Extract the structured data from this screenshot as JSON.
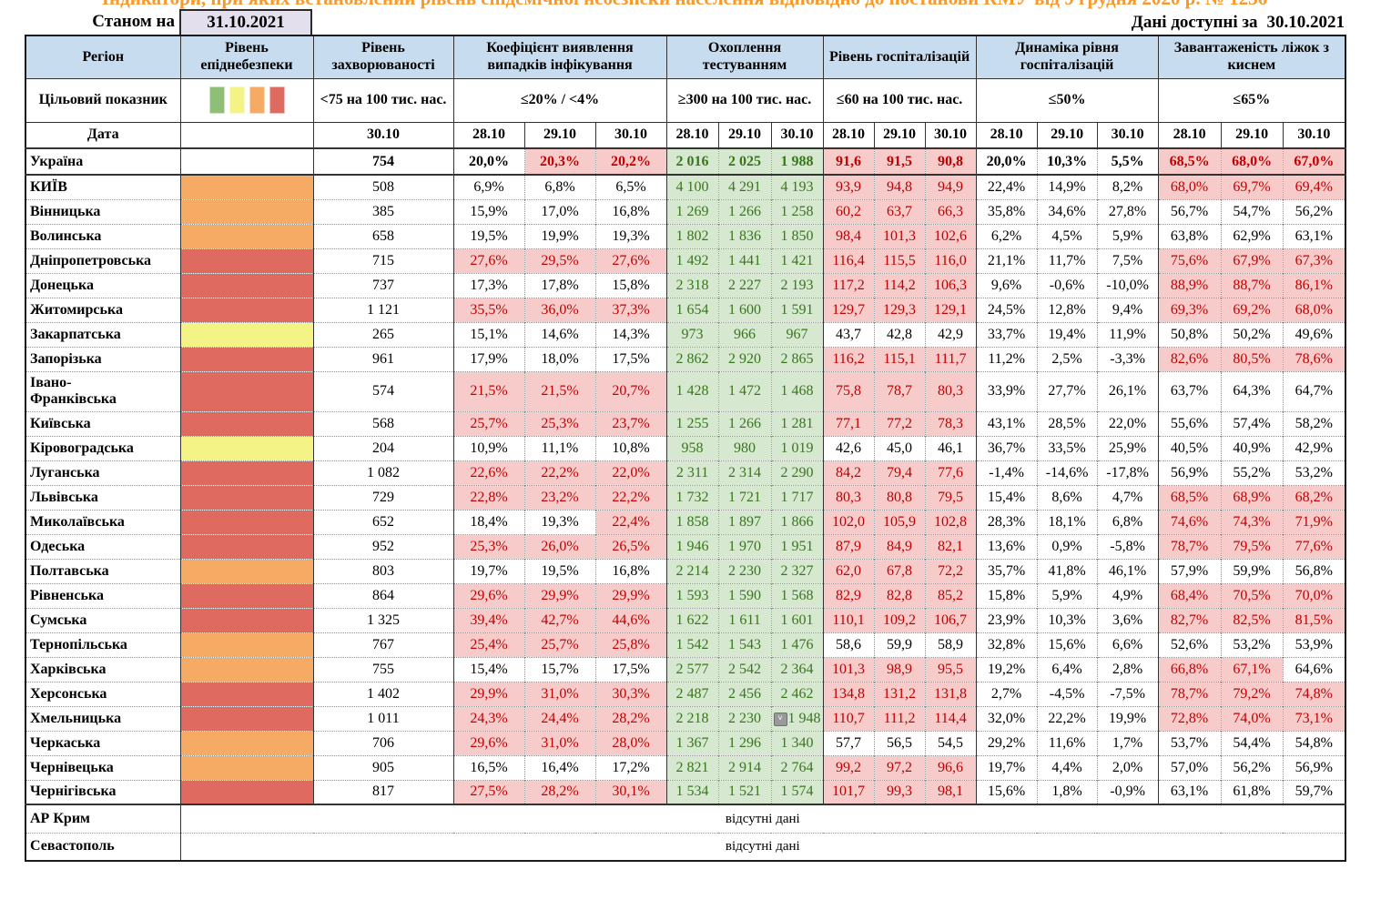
{
  "page": {
    "title_clipped": "Індикатори, при яких встановлений рівень епідемічної небезпеки населення відповідно до постанови КМУ від 9 грудня 2020 р. № 1236",
    "as_of_label": "Станом на",
    "as_of_date": "31.10.2021",
    "available_label": "Дані доступні за",
    "available_date": "30.10.2021"
  },
  "colors": {
    "header_bg": "#C7DDEF",
    "date_box_bg": "#E4DFEC",
    "title_orange": "#F8992B",
    "danger_green": "#8FBE77",
    "danger_yellow": "#F4F385",
    "danger_orange": "#F5AB63",
    "danger_red": "#DF6A60",
    "exceed_bg": "#F8CBCB",
    "exceed_text": "#C00000",
    "testing_bg": "#D7E8D0",
    "testing_text": "#38761D"
  },
  "header": {
    "region": "Регіон",
    "danger": "Рівень епіднебезпеки",
    "target_label": "Цільовий показник",
    "date_label": "Дата",
    "incidence_date": "30.10",
    "dates": [
      "28.10",
      "29.10",
      "30.10"
    ],
    "groups": [
      {
        "title": "Рівень захворюваності",
        "target": "<75 на 100 тис. нас."
      },
      {
        "title": "Коефіцієнт виявлення випадків інфікування",
        "target": "≤20% / <4%"
      },
      {
        "title": "Охоплення тестуванням",
        "target": "≥300 на 100 тис. нас."
      },
      {
        "title": "Рівень госпіталізацій",
        "target": "≤60 на 100 тис. нас."
      },
      {
        "title": "Динаміка рівня госпіталізацій",
        "target": "≤50%"
      },
      {
        "title": "Завантаженість ліжок з киснем",
        "target": "≤65%"
      }
    ],
    "legend_order": [
      "green",
      "yellow",
      "orange",
      "red"
    ]
  },
  "no_data_text": "відсутні дані",
  "no_data_rows": [
    "АР Крим",
    "Севастополь"
  ],
  "rows": [
    {
      "name": "Україна",
      "danger": null,
      "bold": true,
      "inc": "754",
      "detect": [
        "20,0%",
        "20,3%",
        "20,2%"
      ],
      "dflags": [
        0,
        1,
        1
      ],
      "test": [
        "2 016",
        "2 025",
        "1 988"
      ],
      "hosp": [
        "91,6",
        "91,5",
        "90,8"
      ],
      "hflags": [
        1,
        1,
        1
      ],
      "dyn": [
        "20,0%",
        "10,3%",
        "5,5%"
      ],
      "beds": [
        "68,5%",
        "68,0%",
        "67,0%"
      ],
      "bflags": [
        1,
        1,
        1
      ]
    },
    {
      "name": "КИЇВ",
      "danger": "orange",
      "inc": "508",
      "detect": [
        "6,9%",
        "6,8%",
        "6,5%"
      ],
      "dflags": [
        0,
        0,
        0
      ],
      "test": [
        "4 100",
        "4 291",
        "4 193"
      ],
      "hosp": [
        "93,9",
        "94,8",
        "94,9"
      ],
      "hflags": [
        1,
        1,
        1
      ],
      "dyn": [
        "22,4%",
        "14,9%",
        "8,2%"
      ],
      "beds": [
        "68,0%",
        "69,7%",
        "69,4%"
      ],
      "bflags": [
        1,
        1,
        1
      ]
    },
    {
      "name": "Вінницька",
      "danger": "orange",
      "inc": "385",
      "detect": [
        "15,9%",
        "17,0%",
        "16,8%"
      ],
      "dflags": [
        0,
        0,
        0
      ],
      "test": [
        "1 269",
        "1 266",
        "1 258"
      ],
      "hosp": [
        "60,2",
        "63,7",
        "66,3"
      ],
      "hflags": [
        1,
        1,
        1
      ],
      "dyn": [
        "35,8%",
        "34,6%",
        "27,8%"
      ],
      "beds": [
        "56,7%",
        "54,7%",
        "56,2%"
      ],
      "bflags": [
        0,
        0,
        0
      ]
    },
    {
      "name": "Волинська",
      "danger": "orange",
      "inc": "658",
      "detect": [
        "19,5%",
        "19,9%",
        "19,3%"
      ],
      "dflags": [
        0,
        0,
        0
      ],
      "test": [
        "1 802",
        "1 836",
        "1 850"
      ],
      "hosp": [
        "98,4",
        "101,3",
        "102,6"
      ],
      "hflags": [
        1,
        1,
        1
      ],
      "dyn": [
        "6,2%",
        "4,5%",
        "5,9%"
      ],
      "beds": [
        "63,8%",
        "62,9%",
        "63,1%"
      ],
      "bflags": [
        0,
        0,
        0
      ]
    },
    {
      "name": "Дніпропетровська",
      "danger": "red",
      "inc": "715",
      "detect": [
        "27,6%",
        "29,5%",
        "27,6%"
      ],
      "dflags": [
        1,
        1,
        1
      ],
      "test": [
        "1 492",
        "1 441",
        "1 421"
      ],
      "hosp": [
        "116,4",
        "115,5",
        "116,0"
      ],
      "hflags": [
        1,
        1,
        1
      ],
      "dyn": [
        "21,1%",
        "11,7%",
        "7,5%"
      ],
      "beds": [
        "75,6%",
        "67,9%",
        "67,3%"
      ],
      "bflags": [
        1,
        1,
        1
      ]
    },
    {
      "name": "Донецька",
      "danger": "red",
      "inc": "737",
      "detect": [
        "17,3%",
        "17,8%",
        "15,8%"
      ],
      "dflags": [
        0,
        0,
        0
      ],
      "test": [
        "2 318",
        "2 227",
        "2 193"
      ],
      "hosp": [
        "117,2",
        "114,2",
        "106,3"
      ],
      "hflags": [
        1,
        1,
        1
      ],
      "dyn": [
        "9,6%",
        "-0,6%",
        "-10,0%"
      ],
      "beds": [
        "88,9%",
        "88,7%",
        "86,1%"
      ],
      "bflags": [
        1,
        1,
        1
      ]
    },
    {
      "name": "Житомирська",
      "danger": "red",
      "inc": "1 121",
      "detect": [
        "35,5%",
        "36,0%",
        "37,3%"
      ],
      "dflags": [
        1,
        1,
        1
      ],
      "test": [
        "1 654",
        "1 600",
        "1 591"
      ],
      "hosp": [
        "129,7",
        "129,3",
        "129,1"
      ],
      "hflags": [
        1,
        1,
        1
      ],
      "dyn": [
        "24,5%",
        "12,8%",
        "9,4%"
      ],
      "beds": [
        "69,3%",
        "69,2%",
        "68,0%"
      ],
      "bflags": [
        1,
        1,
        1
      ]
    },
    {
      "name": "Закарпатська",
      "danger": "yellow",
      "inc": "265",
      "detect": [
        "15,1%",
        "14,6%",
        "14,3%"
      ],
      "dflags": [
        0,
        0,
        0
      ],
      "test": [
        "973",
        "966",
        "967"
      ],
      "hosp": [
        "43,7",
        "42,8",
        "42,9"
      ],
      "hflags": [
        0,
        0,
        0
      ],
      "dyn": [
        "33,7%",
        "19,4%",
        "11,9%"
      ],
      "beds": [
        "50,8%",
        "50,2%",
        "49,6%"
      ],
      "bflags": [
        0,
        0,
        0
      ]
    },
    {
      "name": "Запорізька",
      "danger": "red",
      "inc": "961",
      "detect": [
        "17,9%",
        "18,0%",
        "17,5%"
      ],
      "dflags": [
        0,
        0,
        0
      ],
      "test": [
        "2 862",
        "2 920",
        "2 865"
      ],
      "hosp": [
        "116,2",
        "115,1",
        "111,7"
      ],
      "hflags": [
        1,
        1,
        1
      ],
      "dyn": [
        "11,2%",
        "2,5%",
        "-3,3%"
      ],
      "beds": [
        "82,6%",
        "80,5%",
        "78,6%"
      ],
      "bflags": [
        1,
        1,
        1
      ]
    },
    {
      "name": "Івано-\nФранківська",
      "danger": "red",
      "tall": true,
      "inc": "574",
      "detect": [
        "21,5%",
        "21,5%",
        "20,7%"
      ],
      "dflags": [
        1,
        1,
        1
      ],
      "test": [
        "1 428",
        "1 472",
        "1 468"
      ],
      "hosp": [
        "75,8",
        "78,7",
        "80,3"
      ],
      "hflags": [
        1,
        1,
        1
      ],
      "dyn": [
        "33,9%",
        "27,7%",
        "26,1%"
      ],
      "beds": [
        "63,7%",
        "64,3%",
        "64,7%"
      ],
      "bflags": [
        0,
        0,
        0
      ]
    },
    {
      "name": "Київська",
      "danger": "red",
      "inc": "568",
      "detect": [
        "25,7%",
        "25,3%",
        "23,7%"
      ],
      "dflags": [
        1,
        1,
        1
      ],
      "test": [
        "1 255",
        "1 266",
        "1 281"
      ],
      "hosp": [
        "77,1",
        "77,2",
        "78,3"
      ],
      "hflags": [
        1,
        1,
        1
      ],
      "dyn": [
        "43,1%",
        "28,5%",
        "22,0%"
      ],
      "beds": [
        "55,6%",
        "57,4%",
        "58,2%"
      ],
      "bflags": [
        0,
        0,
        0
      ]
    },
    {
      "name": "Кіровоградська",
      "danger": "yellow",
      "inc": "204",
      "detect": [
        "10,9%",
        "11,1%",
        "10,8%"
      ],
      "dflags": [
        0,
        0,
        0
      ],
      "test": [
        "958",
        "980",
        "1 019"
      ],
      "hosp": [
        "42,6",
        "45,0",
        "46,1"
      ],
      "hflags": [
        0,
        0,
        0
      ],
      "dyn": [
        "36,7%",
        "33,5%",
        "25,9%"
      ],
      "beds": [
        "40,5%",
        "40,9%",
        "42,9%"
      ],
      "bflags": [
        0,
        0,
        0
      ]
    },
    {
      "name": "Луганська",
      "danger": "red",
      "inc": "1 082",
      "detect": [
        "22,6%",
        "22,2%",
        "22,0%"
      ],
      "dflags": [
        1,
        1,
        1
      ],
      "test": [
        "2 311",
        "2 314",
        "2 290"
      ],
      "hosp": [
        "84,2",
        "79,4",
        "77,6"
      ],
      "hflags": [
        1,
        1,
        1
      ],
      "dyn": [
        "-1,4%",
        "-14,6%",
        "-17,8%"
      ],
      "beds": [
        "56,9%",
        "55,2%",
        "53,2%"
      ],
      "bflags": [
        0,
        0,
        0
      ]
    },
    {
      "name": "Львівська",
      "danger": "red",
      "inc": "729",
      "detect": [
        "22,8%",
        "23,2%",
        "22,2%"
      ],
      "dflags": [
        1,
        1,
        1
      ],
      "test": [
        "1 732",
        "1 721",
        "1 717"
      ],
      "hosp": [
        "80,3",
        "80,8",
        "79,5"
      ],
      "hflags": [
        1,
        1,
        1
      ],
      "dyn": [
        "15,4%",
        "8,6%",
        "4,7%"
      ],
      "beds": [
        "68,5%",
        "68,9%",
        "68,2%"
      ],
      "bflags": [
        1,
        1,
        1
      ]
    },
    {
      "name": "Миколаївська",
      "danger": "red",
      "inc": "652",
      "detect": [
        "18,4%",
        "19,3%",
        "22,4%"
      ],
      "dflags": [
        0,
        0,
        1
      ],
      "test": [
        "1 858",
        "1 897",
        "1 866"
      ],
      "hosp": [
        "102,0",
        "105,9",
        "102,8"
      ],
      "hflags": [
        1,
        1,
        1
      ],
      "dyn": [
        "28,3%",
        "18,1%",
        "6,8%"
      ],
      "beds": [
        "74,6%",
        "74,3%",
        "71,9%"
      ],
      "bflags": [
        1,
        1,
        1
      ]
    },
    {
      "name": "Одеська",
      "danger": "red",
      "inc": "952",
      "detect": [
        "25,3%",
        "26,0%",
        "26,5%"
      ],
      "dflags": [
        1,
        1,
        1
      ],
      "test": [
        "1 946",
        "1 970",
        "1 951"
      ],
      "hosp": [
        "87,9",
        "84,9",
        "82,1"
      ],
      "hflags": [
        1,
        1,
        1
      ],
      "dyn": [
        "13,6%",
        "0,9%",
        "-5,8%"
      ],
      "beds": [
        "78,7%",
        "79,5%",
        "77,6%"
      ],
      "bflags": [
        1,
        1,
        1
      ]
    },
    {
      "name": "Полтавська",
      "danger": "orange",
      "inc": "803",
      "detect": [
        "19,7%",
        "19,5%",
        "16,8%"
      ],
      "dflags": [
        0,
        0,
        0
      ],
      "test": [
        "2 214",
        "2 230",
        "2 327"
      ],
      "hosp": [
        "62,0",
        "67,8",
        "72,2"
      ],
      "hflags": [
        1,
        1,
        1
      ],
      "dyn": [
        "35,7%",
        "41,8%",
        "46,1%"
      ],
      "beds": [
        "57,9%",
        "59,9%",
        "56,8%"
      ],
      "bflags": [
        0,
        0,
        0
      ]
    },
    {
      "name": "Рівненська",
      "danger": "red",
      "inc": "864",
      "detect": [
        "29,6%",
        "29,9%",
        "29,9%"
      ],
      "dflags": [
        1,
        1,
        1
      ],
      "test": [
        "1 593",
        "1 590",
        "1 568"
      ],
      "hosp": [
        "82,9",
        "82,8",
        "85,2"
      ],
      "hflags": [
        1,
        1,
        1
      ],
      "dyn": [
        "15,8%",
        "5,9%",
        "4,9%"
      ],
      "beds": [
        "68,4%",
        "70,5%",
        "70,0%"
      ],
      "bflags": [
        1,
        1,
        1
      ]
    },
    {
      "name": "Сумська",
      "danger": "red",
      "inc": "1 325",
      "detect": [
        "39,4%",
        "42,7%",
        "44,6%"
      ],
      "dflags": [
        1,
        1,
        1
      ],
      "test": [
        "1 622",
        "1 611",
        "1 601"
      ],
      "hosp": [
        "110,1",
        "109,2",
        "106,7"
      ],
      "hflags": [
        1,
        1,
        1
      ],
      "dyn": [
        "23,9%",
        "10,3%",
        "3,6%"
      ],
      "beds": [
        "82,7%",
        "82,5%",
        "81,5%"
      ],
      "bflags": [
        1,
        1,
        1
      ]
    },
    {
      "name": "Тернопільська",
      "danger": "orange",
      "inc": "767",
      "detect": [
        "25,4%",
        "25,7%",
        "25,8%"
      ],
      "dflags": [
        1,
        1,
        1
      ],
      "test": [
        "1 542",
        "1 543",
        "1 476"
      ],
      "hosp": [
        "58,6",
        "59,9",
        "58,9"
      ],
      "hflags": [
        0,
        0,
        0
      ],
      "dyn": [
        "32,8%",
        "15,6%",
        "6,6%"
      ],
      "beds": [
        "52,6%",
        "53,2%",
        "53,9%"
      ],
      "bflags": [
        0,
        0,
        0
      ]
    },
    {
      "name": "Харківська",
      "danger": "orange",
      "inc": "755",
      "detect": [
        "15,4%",
        "15,7%",
        "17,5%"
      ],
      "dflags": [
        0,
        0,
        0
      ],
      "test": [
        "2 577",
        "2 542",
        "2 364"
      ],
      "hosp": [
        "101,3",
        "98,9",
        "95,5"
      ],
      "hflags": [
        1,
        1,
        1
      ],
      "dyn": [
        "19,2%",
        "6,4%",
        "2,8%"
      ],
      "beds": [
        "66,8%",
        "67,1%",
        "64,6%"
      ],
      "bflags": [
        1,
        1,
        0
      ]
    },
    {
      "name": "Херсонська",
      "danger": "red",
      "inc": "1 402",
      "detect": [
        "29,9%",
        "31,0%",
        "30,3%"
      ],
      "dflags": [
        1,
        1,
        1
      ],
      "test": [
        "2 487",
        "2 456",
        "2 462"
      ],
      "hosp": [
        "134,8",
        "131,2",
        "131,8"
      ],
      "hflags": [
        1,
        1,
        1
      ],
      "dyn": [
        "2,7%",
        "-4,5%",
        "-7,5%"
      ],
      "beds": [
        "78,7%",
        "79,2%",
        "74,8%"
      ],
      "bflags": [
        1,
        1,
        1
      ]
    },
    {
      "name": "Хмельницька",
      "danger": "red",
      "inc": "1 011",
      "dropdown_at": 2,
      "detect": [
        "24,3%",
        "24,4%",
        "28,2%"
      ],
      "dflags": [
        1,
        1,
        1
      ],
      "test": [
        "2 218",
        "2 230",
        "1 948"
      ],
      "hosp": [
        "110,7",
        "111,2",
        "114,4"
      ],
      "hflags": [
        1,
        1,
        1
      ],
      "dyn": [
        "32,0%",
        "22,2%",
        "19,9%"
      ],
      "beds": [
        "72,8%",
        "74,0%",
        "73,1%"
      ],
      "bflags": [
        1,
        1,
        1
      ]
    },
    {
      "name": "Черкаська",
      "danger": "orange",
      "inc": "706",
      "detect": [
        "29,6%",
        "31,0%",
        "28,0%"
      ],
      "dflags": [
        1,
        1,
        1
      ],
      "test": [
        "1 367",
        "1 296",
        "1 340"
      ],
      "hosp": [
        "57,7",
        "56,5",
        "54,5"
      ],
      "hflags": [
        0,
        0,
        0
      ],
      "dyn": [
        "29,2%",
        "11,6%",
        "1,7%"
      ],
      "beds": [
        "53,7%",
        "54,4%",
        "54,8%"
      ],
      "bflags": [
        0,
        0,
        0
      ]
    },
    {
      "name": "Чернівецька",
      "danger": "orange",
      "inc": "905",
      "detect": [
        "16,5%",
        "16,4%",
        "17,2%"
      ],
      "dflags": [
        0,
        0,
        0
      ],
      "test": [
        "2 821",
        "2 914",
        "2 764"
      ],
      "hosp": [
        "99,2",
        "97,2",
        "96,6"
      ],
      "hflags": [
        1,
        1,
        1
      ],
      "dyn": [
        "19,7%",
        "4,4%",
        "2,0%"
      ],
      "beds": [
        "57,0%",
        "56,2%",
        "56,9%"
      ],
      "bflags": [
        0,
        0,
        0
      ]
    },
    {
      "name": "Чернігівська",
      "danger": "red",
      "inc": "817",
      "detect": [
        "27,5%",
        "28,2%",
        "30,1%"
      ],
      "dflags": [
        1,
        1,
        1
      ],
      "test": [
        "1 534",
        "1 521",
        "1 574"
      ],
      "hosp": [
        "101,7",
        "99,3",
        "98,1"
      ],
      "hflags": [
        1,
        1,
        1
      ],
      "dyn": [
        "15,6%",
        "1,8%",
        "-0,9%"
      ],
      "beds": [
        "63,1%",
        "61,8%",
        "59,7%"
      ],
      "bflags": [
        0,
        0,
        0
      ]
    }
  ]
}
